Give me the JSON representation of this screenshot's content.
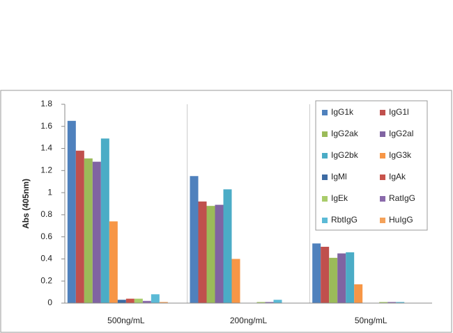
{
  "chart_data": {
    "type": "bar",
    "y_label": "Abs (405nm)",
    "categories": [
      "500ng/mL",
      "200ng/mL",
      "50ng/mL"
    ],
    "series": [
      {
        "name": "IgG1k",
        "color": "#4f81bd",
        "values": [
          1.65,
          1.15,
          0.54
        ]
      },
      {
        "name": "IgG1l",
        "color": "#c0504d",
        "values": [
          1.38,
          0.92,
          0.51
        ]
      },
      {
        "name": "IgG2ak",
        "color": "#9bbb59",
        "values": [
          1.31,
          0.88,
          0.41
        ]
      },
      {
        "name": "IgG2al",
        "color": "#8064a2",
        "values": [
          1.28,
          0.89,
          0.45
        ]
      },
      {
        "name": "IgG2bk",
        "color": "#4bacc6",
        "values": [
          1.49,
          1.03,
          0.46
        ]
      },
      {
        "name": "IgG3k",
        "color": "#f79646",
        "values": [
          0.74,
          0.4,
          0.17
        ]
      },
      {
        "name": "IgMl",
        "color": "#3d6ba3",
        "values": [
          0.03,
          0.0,
          0.0
        ]
      },
      {
        "name": "IgAk",
        "color": "#c8534b",
        "values": [
          0.04,
          0.0,
          0.0
        ]
      },
      {
        "name": "IgEk",
        "color": "#a9cc6b",
        "values": [
          0.04,
          0.01,
          0.01
        ]
      },
      {
        "name": "RatIgG",
        "color": "#8a6aab",
        "values": [
          0.02,
          0.01,
          0.01
        ]
      },
      {
        "name": "RbtIgG",
        "color": "#5bbad6",
        "values": [
          0.08,
          0.03,
          0.01
        ]
      },
      {
        "name": "HuIgG",
        "color": "#f4a25a",
        "values": [
          0.01,
          0.0,
          0.0
        ]
      }
    ],
    "ylim": [
      0,
      1.8
    ],
    "yticks": [
      0,
      0.2,
      0.4,
      0.6,
      0.8,
      1,
      1.2,
      1.4,
      1.6,
      1.8
    ],
    "legend": "upper right"
  }
}
